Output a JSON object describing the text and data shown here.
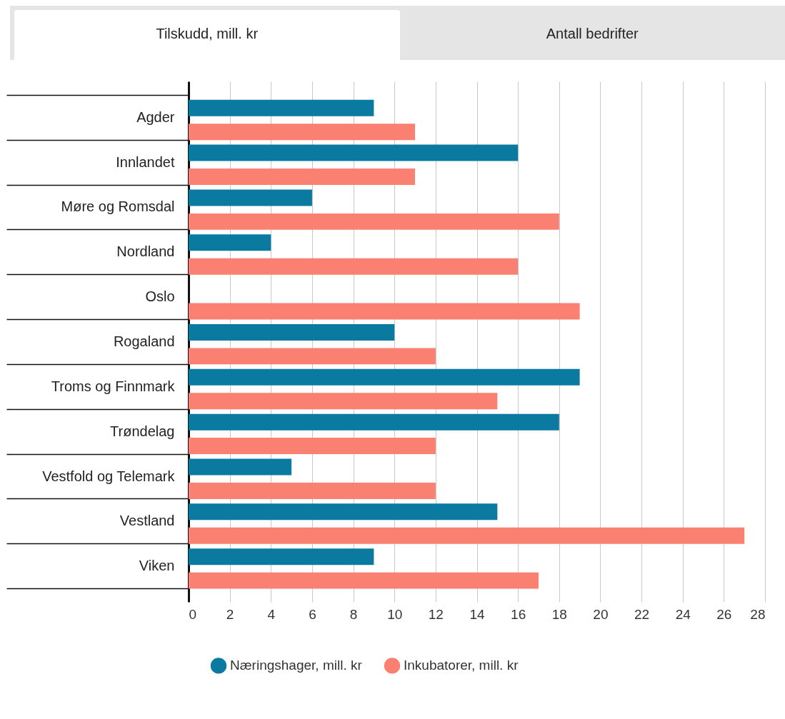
{
  "chart_data": {
    "type": "bar",
    "orientation": "horizontal",
    "annotations": [
      "Tilskudd, mill. kr",
      "Antall bedrifter"
    ],
    "categories": [
      "Agder",
      "Innlandet",
      "Møre og Romsdal",
      "Nordland",
      "Oslo",
      "Rogaland",
      "Troms og Finnmark",
      "Trøndelag",
      "Vestfold og Telemark",
      "Vestland",
      "Viken"
    ],
    "series": [
      {
        "name": "Næringshager, mill. kr",
        "color": "#0b7aa0",
        "values": [
          9,
          16,
          6,
          4,
          null,
          10,
          19,
          18,
          5,
          15,
          9
        ]
      },
      {
        "name": "Inkubatorer, mill. kr",
        "color": "#fa8072",
        "values": [
          11,
          11,
          18,
          16,
          19,
          12,
          15,
          12,
          12,
          27,
          17
        ]
      }
    ],
    "xlim": [
      0,
      28
    ],
    "xticks": [
      0,
      2,
      4,
      6,
      8,
      10,
      12,
      14,
      16,
      18,
      20,
      22,
      24,
      26,
      28
    ],
    "grid": "x",
    "legend": "bottom"
  }
}
